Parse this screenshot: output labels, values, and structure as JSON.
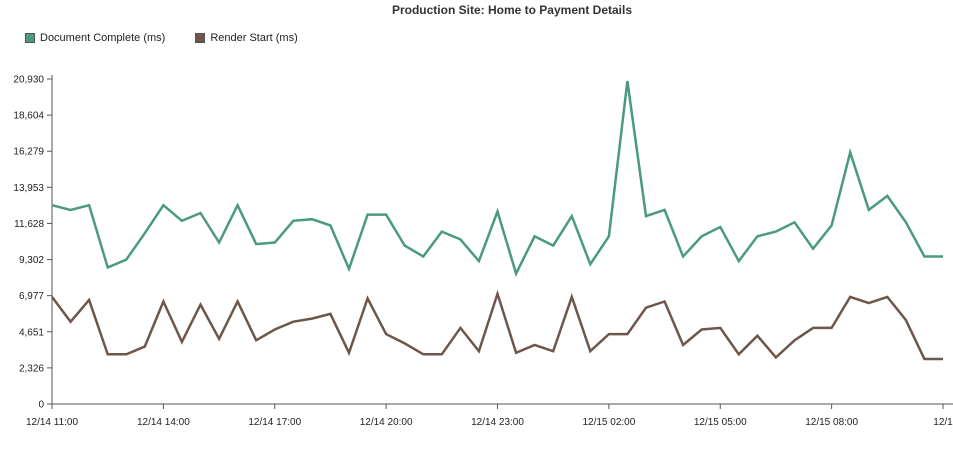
{
  "chart_data": {
    "type": "line",
    "title": "Production Site: Home to Payment Details",
    "legend_position": "top-left",
    "grid": false,
    "xlabel": "",
    "ylabel": "",
    "ylim": [
      0,
      20930
    ],
    "y_ticks": [
      "0",
      "2,326",
      "4,651",
      "6,977",
      "9,302",
      "11,628",
      "13,953",
      "16,279",
      "18,604",
      "20,930"
    ],
    "y_tick_values": [
      0,
      2326,
      4651,
      6977,
      9302,
      11628,
      13953,
      16279,
      18604,
      20930
    ],
    "x_ticks": [
      "12/14 11:00",
      "12/14 14:00",
      "12/14 17:00",
      "12/14 20:00",
      "12/14 23:00",
      "12/15 02:00",
      "12/15 05:00",
      "12/15 08:00",
      "12/1"
    ],
    "x_tick_positions": [
      0,
      3,
      6,
      9,
      12,
      15,
      18,
      21,
      24
    ],
    "x": [
      0,
      0.5,
      1,
      1.5,
      2,
      2.5,
      3,
      3.5,
      4,
      4.5,
      5,
      5.5,
      6,
      6.5,
      7,
      7.5,
      8,
      8.5,
      9,
      9.5,
      10,
      10.5,
      11,
      11.5,
      12,
      12.5,
      13,
      13.5,
      14,
      14.5,
      15,
      15.5,
      16,
      16.5,
      17,
      17.5,
      18,
      18.5,
      19,
      19.5,
      20,
      20.5,
      21,
      21.5,
      22,
      22.5,
      23,
      23.5,
      24
    ],
    "series": [
      {
        "name": "Document Complete (ms)",
        "color": "#4a9a7c",
        "values": [
          12800,
          12500,
          12800,
          8800,
          9300,
          11000,
          12800,
          11800,
          12300,
          10400,
          12800,
          10300,
          10400,
          11800,
          11900,
          11500,
          8700,
          12200,
          12200,
          10200,
          9500,
          11100,
          10600,
          9200,
          12400,
          8400,
          10800,
          10200,
          12100,
          9000,
          10800,
          20800,
          12100,
          12500,
          9500,
          10800,
          11400,
          9200,
          10800,
          11100,
          11700,
          10000,
          11500,
          16200,
          12500,
          13400,
          11700,
          9500,
          9500
        ]
      },
      {
        "name": "Render Start (ms)",
        "color": "#6e564a",
        "values": [
          6900,
          5300,
          6700,
          3200,
          3200,
          3700,
          6600,
          4000,
          6400,
          4200,
          6600,
          4100,
          4800,
          5300,
          5500,
          5800,
          3300,
          6800,
          4500,
          3900,
          3200,
          3200,
          4900,
          3400,
          7100,
          3300,
          3800,
          3400,
          6900,
          3400,
          4500,
          4500,
          6200,
          6600,
          3800,
          4800,
          4900,
          3200,
          4400,
          3000,
          4100,
          4900,
          4900,
          6900,
          6500,
          6900,
          5400,
          2900,
          2900
        ]
      }
    ]
  }
}
